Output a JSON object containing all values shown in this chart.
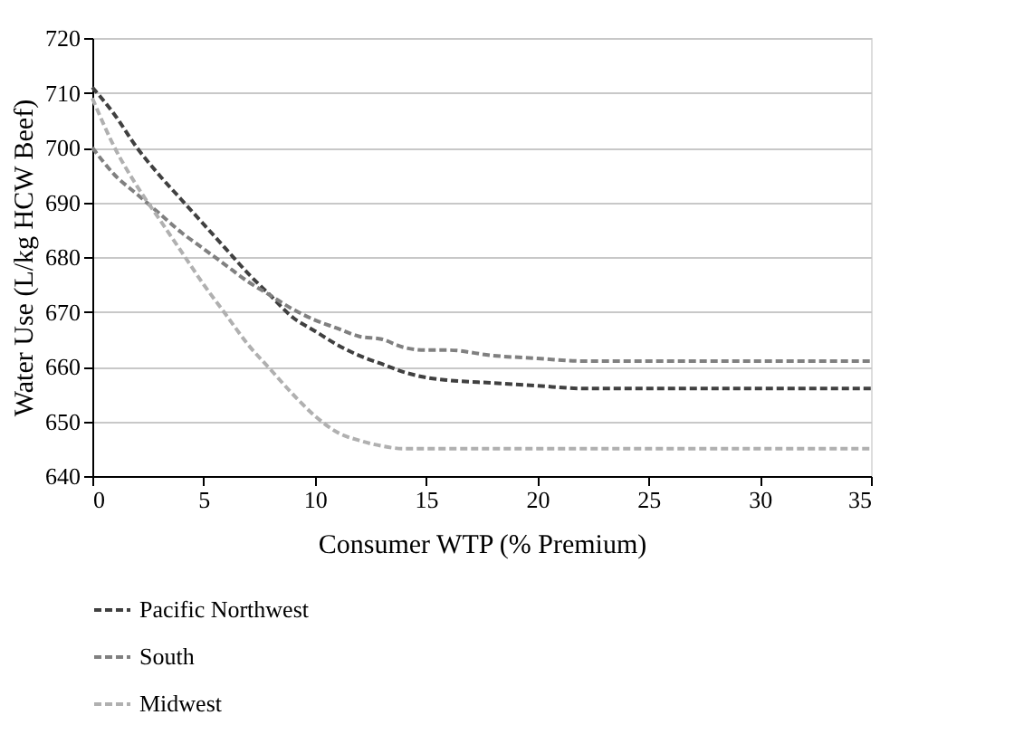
{
  "chart_data": {
    "type": "line",
    "xlabel": "Consumer WTP (% Premium)",
    "ylabel": "Water Use (L/kg HCW Beef)",
    "x": [
      0,
      1,
      2,
      3,
      4,
      5,
      6,
      7,
      8,
      9,
      10,
      11,
      12,
      13,
      14,
      15,
      16,
      18,
      20,
      22,
      25,
      30,
      35
    ],
    "series": [
      {
        "name": "Pacific Northwest",
        "color": "#404040",
        "values": [
          711,
          706,
          700,
          695,
          690.5,
          686,
          681.5,
          677,
          673,
          669,
          666.5,
          664,
          662,
          660.5,
          659,
          658,
          657.5,
          657,
          656.5,
          656,
          656,
          656,
          656
        ]
      },
      {
        "name": "South",
        "color": "#808080",
        "values": [
          700,
          695,
          691.5,
          688,
          684.5,
          681.5,
          678.5,
          675.5,
          673,
          670.5,
          668.5,
          667,
          665.5,
          665,
          663.5,
          663,
          663,
          662,
          661.5,
          661,
          661,
          661,
          661
        ]
      },
      {
        "name": "Midwest",
        "color": "#b0b0b0",
        "values": [
          709,
          700,
          693,
          687,
          681,
          675,
          669.5,
          664,
          659.5,
          655,
          651,
          648,
          646.5,
          645.5,
          645,
          645,
          645,
          645,
          645,
          645,
          645,
          645,
          645
        ]
      }
    ],
    "xlim": [
      0,
      35
    ],
    "xticks": [
      0,
      5,
      10,
      15,
      20,
      25,
      30,
      35
    ],
    "ylim": [
      640,
      720
    ],
    "yticks": [
      640,
      650,
      660,
      670,
      680,
      690,
      700,
      710,
      720
    ],
    "grid": "y",
    "legend": "bottom",
    "marker": "none",
    "line_style": "dashed"
  }
}
